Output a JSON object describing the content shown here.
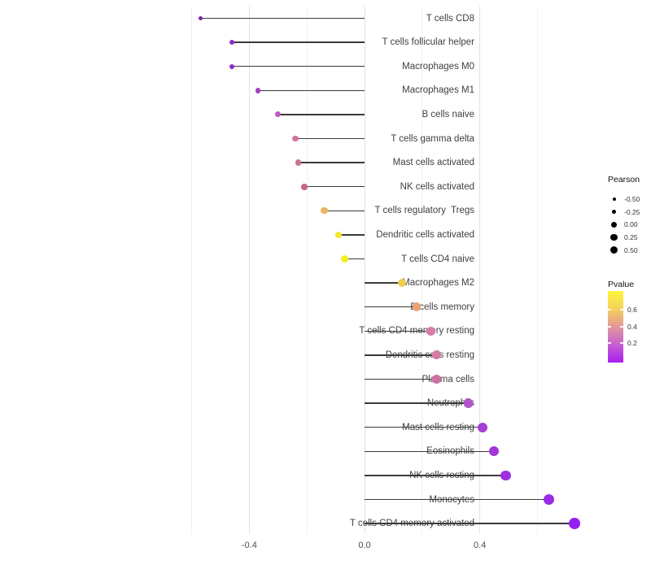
{
  "chart_data": {
    "type": "scatter",
    "style": "lollipop",
    "title": "",
    "xlabel": "",
    "ylabel": "",
    "grid": "vertical-only",
    "xlim": [
      -0.62,
      0.78
    ],
    "x_major_ticks": [
      -0.4,
      0.0,
      0.4
    ],
    "x_tick_labels": [
      "-0.4",
      "0.0",
      "0.4"
    ],
    "x_minor_ticks": [
      -0.6,
      -0.2,
      0.2,
      0.6
    ],
    "baseline": 0.0,
    "categories": [
      "T cells CD8",
      "T cells follicular helper",
      "Macrophages M0",
      "Macrophages M1",
      "B cells naive",
      "T cells gamma delta",
      "Mast cells activated",
      "NK cells activated",
      "T cells regulatory  Tregs",
      "Dendritic cells activated",
      "T cells CD4 naive",
      "Macrophages M2",
      "B cells memory",
      "T cells CD4 memory resting",
      "Dendritic cells resting",
      "Plasma cells",
      "Neutrophils",
      "Mast cells resting",
      "Eosinophils",
      "NK cells resting",
      "Monocytes",
      "T cells CD4 memory activated"
    ],
    "series": [
      {
        "name": "Pearson correlation",
        "values": [
          -0.57,
          -0.46,
          -0.46,
          -0.37,
          -0.3,
          -0.24,
          -0.23,
          -0.21,
          -0.14,
          -0.09,
          -0.07,
          0.13,
          0.18,
          0.23,
          0.25,
          0.25,
          0.36,
          0.41,
          0.45,
          0.49,
          0.64,
          0.73
        ]
      }
    ],
    "point_colors": [
      "#7f22ad",
      "#8e2cc7",
      "#8e2cc7",
      "#a340c4",
      "#bd5ac2",
      "#cf769d",
      "#cb7195",
      "#c9648a",
      "#eab55e",
      "#f2e62e",
      "#f5ee20",
      "#f0cd4e",
      "#eba275",
      "#d77fab",
      "#d67aa7",
      "#cf6fa2",
      "#b352cb",
      "#a73fd6",
      "#a136dc",
      "#9c30e0",
      "#9a2be8",
      "#941fef"
    ],
    "legends": {
      "size": {
        "title": "Pearson",
        "labels": [
          "-0.50",
          "-0.25",
          "0.00",
          "0.25",
          "0.50"
        ],
        "dot_color": "#000000"
      },
      "color": {
        "title": "Pvalue",
        "labels": [
          "0.6",
          "0.4",
          "0.2"
        ],
        "gradient_top_to_bottom": [
          "#fbf63c",
          "#f4cf5e",
          "#e2979c",
          "#c663cf",
          "#a81df0"
        ]
      }
    },
    "stem_color": "#3a3a3a",
    "axis_text_color": "#4d4d4d"
  }
}
